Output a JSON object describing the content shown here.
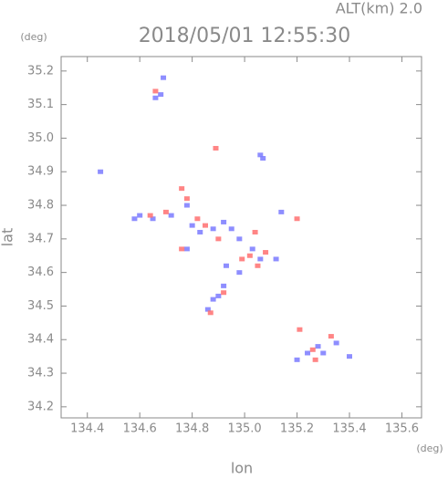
{
  "chart_data": {
    "type": "scatter",
    "title": "2018/05/01 12:55:30",
    "subtitle": "ALT(km) 2.0",
    "x_label": "lon",
    "y_label": "lat",
    "x_unit": "(deg)",
    "y_unit": "(deg)",
    "xlim": [
      134.3,
      135.675
    ],
    "ylim": [
      34.167,
      35.243
    ],
    "xticks": [
      134.4,
      134.6,
      134.8,
      135.0,
      135.2,
      135.4,
      135.6
    ],
    "yticks": [
      34.2,
      34.3,
      34.4,
      34.5,
      34.6,
      34.7,
      34.8,
      34.9,
      35.0,
      35.1,
      35.2
    ],
    "series": [
      {
        "color": "#7a7aff",
        "x": [
          134.68,
          134.66,
          135.07,
          135.06,
          134.58,
          134.6,
          134.65,
          134.72,
          134.78,
          134.8,
          134.83,
          134.88,
          134.92,
          134.95,
          134.98,
          135.03,
          135.06,
          135.12,
          134.88,
          134.9,
          134.86,
          134.92,
          135.24,
          135.28,
          135.3,
          135.35,
          135.4,
          135.2,
          134.69,
          134.45,
          135.14,
          134.78,
          134.93,
          134.98
        ],
        "values": [
          35.13,
          35.12,
          34.94,
          34.95,
          34.76,
          34.77,
          34.76,
          34.77,
          34.8,
          34.74,
          34.72,
          34.73,
          34.75,
          34.73,
          34.7,
          34.67,
          34.64,
          34.64,
          34.52,
          34.53,
          34.49,
          34.56,
          34.36,
          34.38,
          34.36,
          34.39,
          34.35,
          34.34,
          35.18,
          34.9,
          34.78,
          34.67,
          34.62,
          34.6
        ]
      },
      {
        "color": "#ff7070",
        "x": [
          134.66,
          134.89,
          134.64,
          134.7,
          134.76,
          134.78,
          134.82,
          134.85,
          134.9,
          135.02,
          135.05,
          135.08,
          134.99,
          134.92,
          134.87,
          135.26,
          135.33,
          135.27,
          135.21,
          135.2,
          134.76,
          135.04
        ],
        "values": [
          35.14,
          34.97,
          34.77,
          34.78,
          34.85,
          34.82,
          34.76,
          34.74,
          34.7,
          34.65,
          34.62,
          34.66,
          34.64,
          34.54,
          34.48,
          34.37,
          34.41,
          34.34,
          34.43,
          34.76,
          34.67,
          34.72
        ]
      }
    ]
  }
}
